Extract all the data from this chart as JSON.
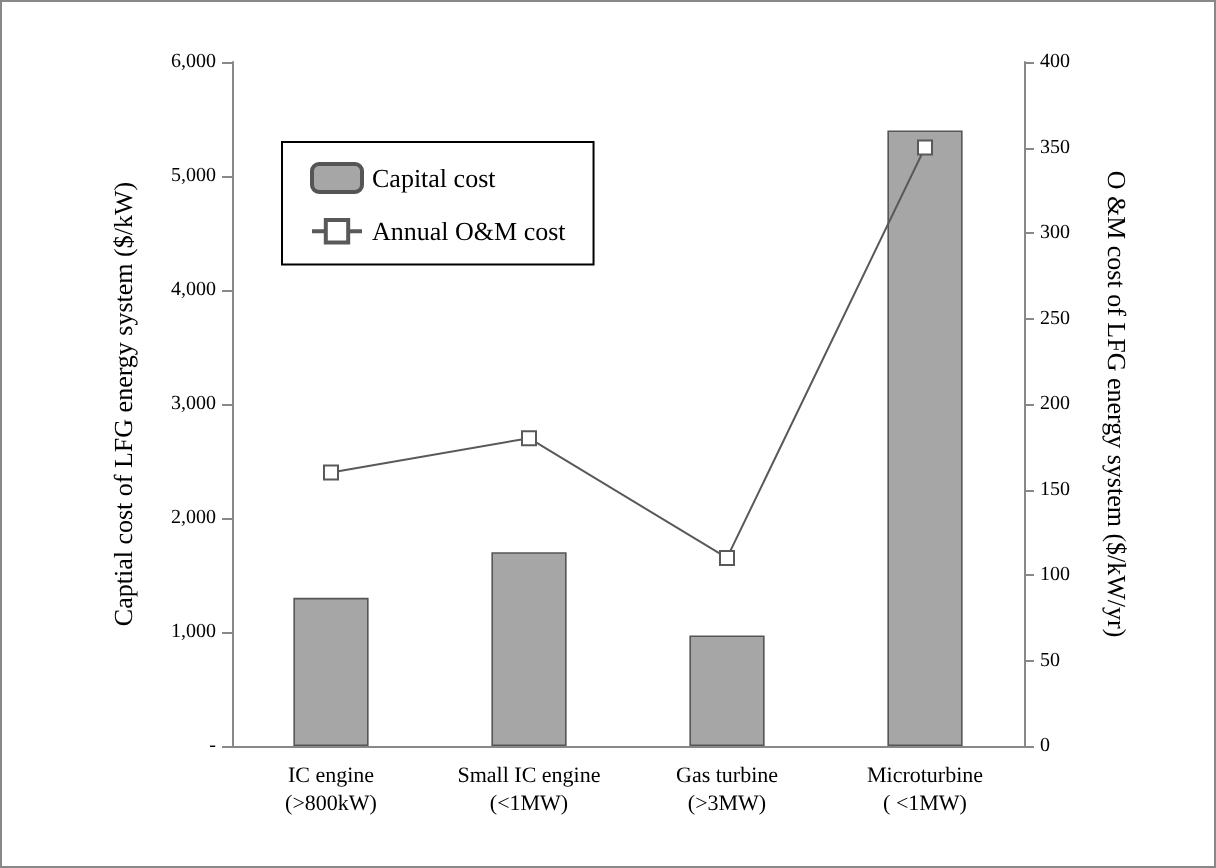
{
  "chart_data": {
    "type": "bar",
    "ylabel": "Captial cost of LFG energy system ($/kW)",
    "y2label": "O &M cost of LFG energy system ($/kW/yr)",
    "categories": [
      "IC engine\n(>800kW)",
      "Small IC engine\n(<1MW)",
      "Gas turbine\n(>3MW)",
      "Microturbine\n( <1MW)"
    ],
    "series": [
      {
        "name": "Capital cost",
        "color": "#a6a6a6",
        "values": [
          1300,
          1700,
          970,
          5400
        ]
      },
      {
        "name": "Annual O&M cost",
        "type": "line",
        "axis": "y2",
        "color": "#595959",
        "marker": "square",
        "values": [
          160,
          180,
          110,
          350
        ]
      }
    ],
    "ylim": [
      0,
      6000
    ],
    "yticks": [
      {
        "value": 0,
        "label": "-"
      },
      {
        "value": 1000,
        "label": "1,000"
      },
      {
        "value": 2000,
        "label": "2,000"
      },
      {
        "value": 3000,
        "label": "3,000"
      },
      {
        "value": 4000,
        "label": "4,000"
      },
      {
        "value": 5000,
        "label": "5,000"
      },
      {
        "value": 6000,
        "label": "6,000"
      }
    ],
    "y2lim": [
      0,
      400
    ],
    "y2ticks": [
      0,
      50,
      100,
      150,
      200,
      250,
      300,
      350,
      400
    ],
    "legend": "top left",
    "grid": false
  }
}
